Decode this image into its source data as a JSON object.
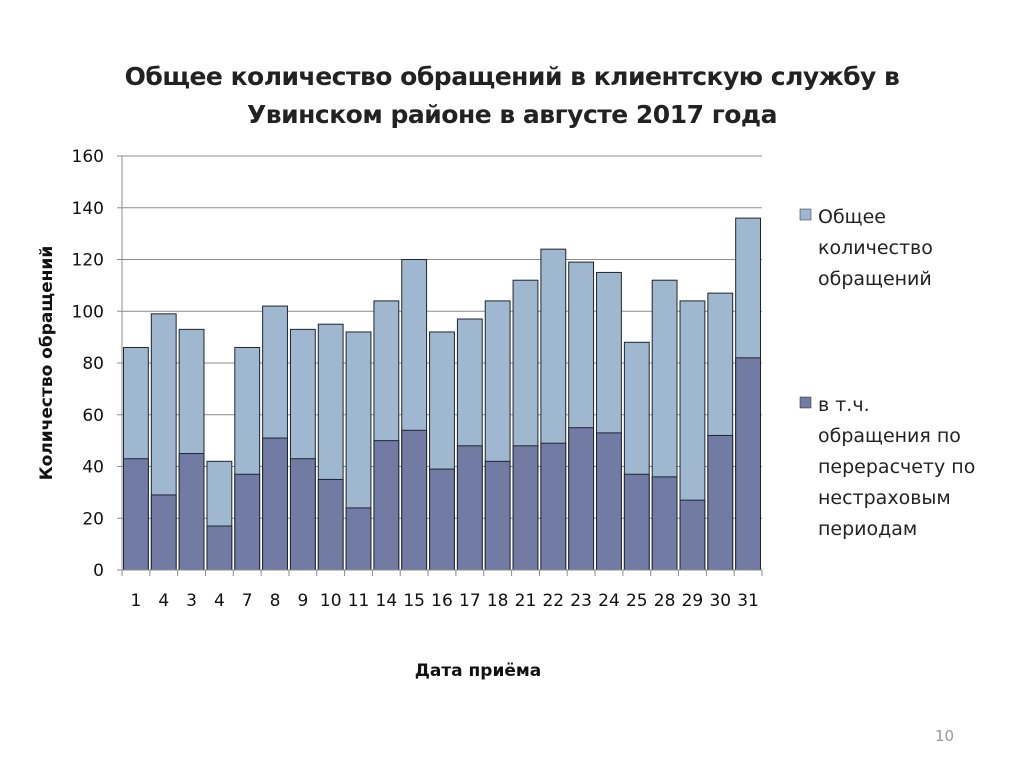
{
  "slide": {
    "page_number": "10"
  },
  "chart_data": {
    "type": "bar",
    "layout": "overlapped",
    "title": "Общее количество обращений в клиентскую службу в Увинском районе в августе 2017 года",
    "xlabel": "Дата приёма",
    "ylabel": "Количество обращений",
    "ylim": [
      0,
      160
    ],
    "yticks": [
      0,
      20,
      40,
      60,
      80,
      100,
      120,
      140,
      160
    ],
    "grid": true,
    "legend_position": "right",
    "categories": [
      "1",
      "4",
      "3",
      "4",
      "7",
      "8",
      "9",
      "10",
      "11",
      "14",
      "15",
      "16",
      "17",
      "18",
      "21",
      "22",
      "23",
      "24",
      "25",
      "28",
      "29",
      "30",
      "31"
    ],
    "series": [
      {
        "name": "Общее количество обращений",
        "color": "#9fb8d0",
        "values": [
          86,
          99,
          93,
          42,
          86,
          102,
          93,
          95,
          92,
          104,
          120,
          92,
          97,
          104,
          112,
          124,
          119,
          115,
          88,
          112,
          104,
          107,
          136
        ]
      },
      {
        "name": "в т.ч. обращения по перерасчету по нестраховым периодам",
        "color": "#717ba3",
        "values": [
          43,
          29,
          45,
          17,
          37,
          51,
          43,
          35,
          24,
          50,
          54,
          39,
          48,
          42,
          48,
          49,
          55,
          53,
          37,
          36,
          27,
          52,
          82
        ]
      }
    ],
    "legend_lines": [
      [
        "Общее",
        "количество",
        "обращений"
      ],
      [
        "в т.ч.",
        "обращения по",
        "перерасчету по",
        "нестраховым",
        "периодам"
      ]
    ]
  }
}
